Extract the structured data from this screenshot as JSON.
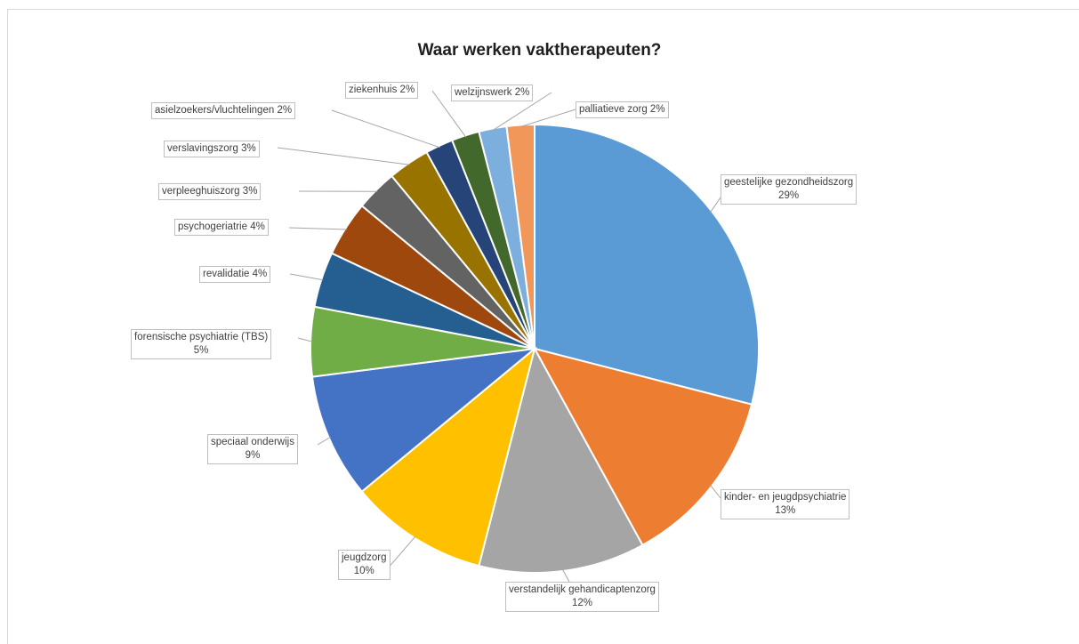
{
  "chart_data": {
    "type": "pie",
    "title": "Waar werken vaktherapeuten?",
    "slices": [
      {
        "label": "geestelijke gezondheidszorg",
        "value": 29,
        "value_label": "29%",
        "color": "#5b9bd5"
      },
      {
        "label": "kinder- en jeugdpsychiatrie",
        "value": 13,
        "value_label": "13%",
        "color": "#ed7d31"
      },
      {
        "label": "verstandelijk gehandicaptenzorg",
        "value": 12,
        "value_label": "12%",
        "color": "#a5a5a5"
      },
      {
        "label": "jeugdzorg",
        "value": 10,
        "value_label": "10%",
        "color": "#ffc000"
      },
      {
        "label": "speciaal onderwijs",
        "value": 9,
        "value_label": "9%",
        "color": "#4472c4"
      },
      {
        "label": "forensische psychiatrie (TBS)",
        "value": 5,
        "value_label": "5%",
        "color": "#70ad47"
      },
      {
        "label": "revalidatie",
        "value": 4,
        "value_label": "4%",
        "color": "#255e91"
      },
      {
        "label": "psychogeriatrie",
        "value": 4,
        "value_label": "4%",
        "color": "#9e480e"
      },
      {
        "label": "verpleeghuiszorg",
        "value": 3,
        "value_label": "3%",
        "color": "#636363"
      },
      {
        "label": "verslavingszorg",
        "value": 3,
        "value_label": "3%",
        "color": "#997300"
      },
      {
        "label": "asielzoekers/vluchtelingen",
        "value": 2,
        "value_label": "2%",
        "color": "#264478"
      },
      {
        "label": "ziekenhuis",
        "value": 2,
        "value_label": "2%",
        "color": "#43682b"
      },
      {
        "label": "welzijnswerk",
        "value": 2,
        "value_label": "2%",
        "color": "#7cafdd"
      },
      {
        "label": "palliatieve zorg",
        "value": 2,
        "value_label": "2%",
        "color": "#f1975a"
      }
    ]
  }
}
